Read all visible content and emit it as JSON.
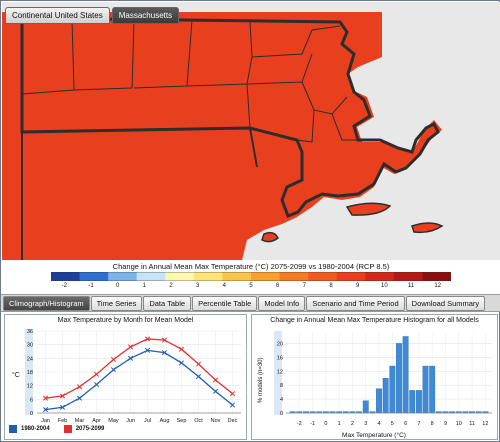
{
  "map": {
    "tabs": [
      {
        "label": "Continental United States",
        "active": false
      },
      {
        "label": "Massachusetts",
        "active": true
      }
    ],
    "fill_color": "#e8401f",
    "border_color": "#2d2d2d"
  },
  "legend": {
    "title": "Change in Annual Mean Max Temperature (°C) 2075-2099 vs 1980-2004 (RCP 8.5)",
    "ticks": [
      "-2",
      "-1",
      "0",
      "1",
      "2",
      "3",
      "4",
      "5",
      "6",
      "7",
      "8",
      "9",
      "10",
      "11",
      "12"
    ],
    "colors": [
      "#1b3f9a",
      "#2f6fd0",
      "#7bb4ea",
      "#c7e4f6",
      "#fff7b0",
      "#fde477",
      "#fbc44a",
      "#f9a030",
      "#f47a23",
      "#ef5a1e",
      "#e8401f",
      "#d12a18",
      "#b31a14",
      "#8c0f10"
    ]
  },
  "tabs": [
    {
      "label": "Climograph/Histogram",
      "active": true
    },
    {
      "label": "Time Series",
      "active": false
    },
    {
      "label": "Data Table",
      "active": false
    },
    {
      "label": "Percentile Table",
      "active": false
    },
    {
      "label": "Model Info",
      "active": false
    },
    {
      "label": "Scenario and Time Period",
      "active": false
    },
    {
      "label": "Download Summary",
      "active": false
    }
  ],
  "chart_data": [
    {
      "type": "line",
      "title": "Max Temperature by Month for Mean Model",
      "ylabel": "°C",
      "categories": [
        "Jan",
        "Feb",
        "Mar",
        "Apr",
        "May",
        "Jun",
        "Jul",
        "Aug",
        "Sep",
        "Oct",
        "Nov",
        "Dec"
      ],
      "yticks": [
        0,
        6,
        12,
        18,
        24,
        30,
        36
      ],
      "ylim": [
        0,
        36
      ],
      "grid": true,
      "series": [
        {
          "name": "1980-2004",
          "color": "#1f5fb0",
          "values": [
            1.5,
            2.5,
            6.5,
            12.5,
            19,
            24,
            27.5,
            26.5,
            22,
            16,
            9.5,
            3.5
          ]
        },
        {
          "name": "2075-2099",
          "color": "#e03030",
          "values": [
            6.5,
            7.5,
            11.5,
            17,
            23.5,
            29,
            32.5,
            32,
            28,
            21.5,
            14.5,
            8.5
          ]
        }
      ],
      "legend": "bottom"
    },
    {
      "type": "bar",
      "title": "Change in Annual Mean Max Temperature Histogram for all Models",
      "xlabel": "Max Temperature (°C)",
      "ylabel": "% models (n=30)",
      "x": [
        -2.5,
        -2,
        -1.5,
        -1,
        -0.5,
        0,
        0.5,
        1,
        1.5,
        2,
        2.5,
        3,
        3.5,
        4,
        4.5,
        5,
        5.5,
        6,
        6.5,
        7,
        7.5,
        8,
        8.5,
        9,
        9.5,
        10,
        10.5,
        11,
        11.5,
        12
      ],
      "xticks": [
        "-2",
        "-1",
        "0",
        "1",
        "2",
        "3",
        "4",
        "5",
        "6",
        "7",
        "8",
        "9",
        "10",
        "11",
        "12"
      ],
      "values": [
        0,
        0,
        0,
        0,
        0,
        0,
        0,
        0,
        0,
        0,
        0,
        3.5,
        0,
        7,
        10,
        13.5,
        20,
        22,
        6.5,
        6.5,
        13.5,
        13.5,
        0,
        0,
        0,
        0,
        0,
        0,
        0,
        0
      ],
      "yticks": [
        0,
        4,
        8,
        12,
        16,
        20
      ],
      "ylim": [
        0,
        23
      ],
      "color": "#3f8ad6",
      "grid": true
    }
  ]
}
